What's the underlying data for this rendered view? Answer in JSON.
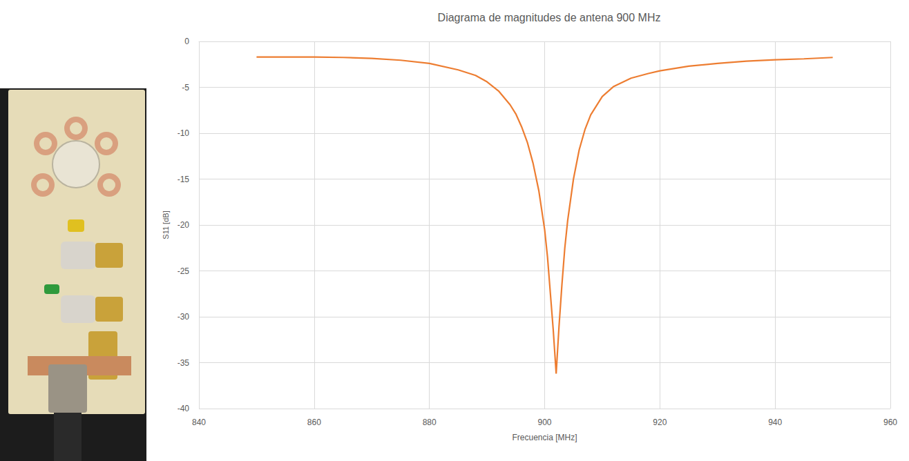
{
  "chart_data": {
    "type": "line",
    "title": "Diagrama de magnitudes de antena 900 MHz",
    "x_label": "Frecuencia [MHz]",
    "y_label": "S11 [dB]",
    "x": [
      850,
      855,
      860,
      865,
      870,
      875,
      880,
      885,
      888,
      890,
      892,
      894,
      895,
      896,
      897,
      898,
      899,
      900,
      900.5,
      901,
      901.5,
      902,
      902.5,
      903,
      903.5,
      904,
      905,
      906,
      907,
      908,
      910,
      912,
      915,
      918,
      920,
      925,
      930,
      935,
      940,
      945,
      950
    ],
    "values": [
      -1.7,
      -1.7,
      -1.7,
      -1.75,
      -1.85,
      -2.05,
      -2.4,
      -3.1,
      -3.7,
      -4.4,
      -5.4,
      -6.9,
      -7.9,
      -9.3,
      -11.0,
      -13.3,
      -16.3,
      -20.5,
      -23.5,
      -27.5,
      -31.5,
      -36.2,
      -31.0,
      -26.5,
      -22.5,
      -19.5,
      -15.0,
      -11.8,
      -9.6,
      -8.0,
      -6.0,
      -4.9,
      -4.0,
      -3.5,
      -3.2,
      -2.7,
      -2.4,
      -2.15,
      -2.0,
      -1.9,
      -1.75
    ],
    "color": "#ed7d31",
    "xlim": [
      840,
      960
    ],
    "xticks": [
      840,
      860,
      880,
      900,
      920,
      940,
      960
    ],
    "ylim": [
      -40,
      0
    ],
    "yticks": [
      -40,
      -35,
      -30,
      -25,
      -20,
      -15,
      -10,
      -5,
      0
    ],
    "grid": true
  }
}
